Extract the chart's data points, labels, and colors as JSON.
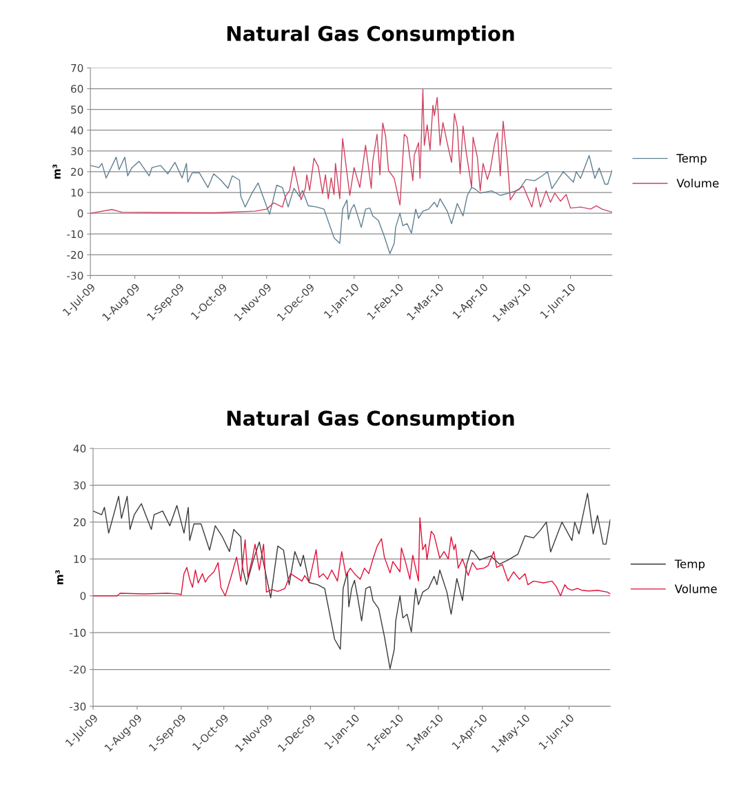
{
  "chart_data": [
    {
      "type": "line",
      "title": "Natural Gas Consumption",
      "ylabel": "m³",
      "ylim": [
        -30,
        70
      ],
      "yticks": [
        -30,
        -20,
        -10,
        0,
        10,
        20,
        30,
        40,
        50,
        60,
        70
      ],
      "xlim": [
        "2009-07-01",
        "2010-06-30"
      ],
      "xticks": [
        {
          "value": "2009-07-01",
          "label": "1-Jul-09"
        },
        {
          "value": "2009-08-01",
          "label": "1-Aug-09"
        },
        {
          "value": "2009-09-01",
          "label": "1-Sep-09"
        },
        {
          "value": "2009-10-01",
          "label": "1-Oct-09"
        },
        {
          "value": "2009-11-01",
          "label": "1-Nov-09"
        },
        {
          "value": "2009-12-01",
          "label": "1-Dec-09"
        },
        {
          "value": "2010-01-01",
          "label": "1-Jan-10"
        },
        {
          "value": "2010-02-01",
          "label": "1-Feb-10"
        },
        {
          "value": "2010-03-01",
          "label": "1-Mar-10"
        },
        {
          "value": "2010-04-01",
          "label": "1-Apr-10"
        },
        {
          "value": "2010-05-01",
          "label": "1-May-10"
        },
        {
          "value": "2010-06-01",
          "label": "1-Jun-10"
        }
      ],
      "grid": "y",
      "legend": "right",
      "marker": "none",
      "line_style": "solid",
      "series": [
        {
          "name": "Temp",
          "color": "#5f7f91",
          "x": [
            "2009-07-01",
            "2009-07-07",
            "2009-07-09",
            "2009-07-12",
            "2009-07-19",
            "2009-07-21",
            "2009-07-25",
            "2009-07-27",
            "2009-07-30",
            "2009-08-04",
            "2009-08-11",
            "2009-08-13",
            "2009-08-19",
            "2009-08-24",
            "2009-08-29",
            "2009-09-03",
            "2009-09-06",
            "2009-09-07",
            "2009-09-10",
            "2009-09-15",
            "2009-09-21",
            "2009-09-25",
            "2009-09-30",
            "2009-10-05",
            "2009-10-08",
            "2009-10-13",
            "2009-10-14",
            "2009-10-17",
            "2009-10-22",
            "2009-10-26",
            "2009-10-30",
            "2009-11-03",
            "2009-11-08",
            "2009-11-12",
            "2009-11-16",
            "2009-11-20",
            "2009-11-24",
            "2009-11-26",
            "2009-11-30",
            "2009-12-06",
            "2009-12-11",
            "2009-12-18",
            "2009-12-22",
            "2009-12-24",
            "2009-12-27",
            "2009-12-28",
            "2009-12-30",
            "2010-01-01",
            "2010-01-03",
            "2010-01-06",
            "2010-01-09",
            "2010-01-12",
            "2010-01-14",
            "2010-01-18",
            "2010-01-22",
            "2010-01-26",
            "2010-01-29",
            "2010-01-30",
            "2010-02-02",
            "2010-02-04",
            "2010-02-07",
            "2010-02-10",
            "2010-02-13",
            "2010-02-15",
            "2010-02-18",
            "2010-02-22",
            "2010-02-26",
            "2010-02-28",
            "2010-03-02",
            "2010-03-07",
            "2010-03-10",
            "2010-03-14",
            "2010-03-18",
            "2010-03-21",
            "2010-03-24",
            "2010-03-26",
            "2010-03-30",
            "2010-04-07",
            "2010-04-13",
            "2010-04-19",
            "2010-04-26",
            "2010-05-01",
            "2010-05-07",
            "2010-05-12",
            "2010-05-16",
            "2010-05-19",
            "2010-05-27",
            "2010-06-03",
            "2010-06-05",
            "2010-06-08",
            "2010-06-14",
            "2010-06-18",
            "2010-06-21",
            "2010-06-25",
            "2010-06-27",
            "2010-06-30"
          ],
          "values": [
            23,
            22,
            24,
            17,
            27,
            21,
            27,
            18,
            22,
            25,
            18,
            22,
            23,
            19,
            24.5,
            17,
            24,
            15,
            19.5,
            19.5,
            12.4,
            19,
            16,
            12,
            18,
            16,
            8,
            3,
            10,
            14.6,
            7,
            -0.5,
            13.5,
            12.4,
            3,
            12,
            8,
            11,
            3.6,
            3,
            2,
            -11.8,
            -14.5,
            2,
            6.4,
            -3,
            2,
            4.2,
            0,
            -6.8,
            2,
            2.5,
            -1.3,
            -3.5,
            -11,
            -19.5,
            -14.5,
            -6.8,
            0,
            -6,
            -5,
            -9.6,
            2,
            -2.4,
            1,
            2,
            5.3,
            3,
            7,
            1,
            -5,
            4.7,
            -1.3,
            8.6,
            12.4,
            11.9,
            9.7,
            10.8,
            8.6,
            9.7,
            11.3,
            16.3,
            15.7,
            17.9,
            20,
            11.9,
            20,
            15,
            20,
            16.8,
            27.8,
            16.8,
            21.8,
            14,
            14,
            20.7
          ]
        },
        {
          "name": "Volume",
          "color": "#d04060",
          "x": [
            "2009-07-01",
            "2009-07-16",
            "2009-07-23",
            "2009-08-24",
            "2009-09-25",
            "2009-10-24",
            "2009-11-01",
            "2009-11-06",
            "2009-11-12",
            "2009-11-14",
            "2009-11-17",
            "2009-11-20",
            "2009-11-22",
            "2009-11-25",
            "2009-11-28",
            "2009-11-29",
            "2009-12-01",
            "2009-12-04",
            "2009-12-07",
            "2009-12-10",
            "2009-12-12",
            "2009-12-14",
            "2009-12-16",
            "2009-12-18",
            "2009-12-19",
            "2009-12-22",
            "2009-12-24",
            "2009-12-27",
            "2009-12-29",
            "2010-01-01",
            "2010-01-05",
            "2010-01-09",
            "2010-01-13",
            "2010-01-14",
            "2010-01-17",
            "2010-01-19",
            "2010-01-21",
            "2010-01-23",
            "2010-01-25",
            "2010-01-29",
            "2010-02-02",
            "2010-02-05",
            "2010-02-07",
            "2010-02-11",
            "2010-02-12",
            "2010-02-15",
            "2010-02-16",
            "2010-02-18",
            "2010-02-19",
            "2010-02-21",
            "2010-02-23",
            "2010-02-25",
            "2010-02-26",
            "2010-02-28",
            "2010-03-02",
            "2010-03-04",
            "2010-03-07",
            "2010-03-10",
            "2010-03-12",
            "2010-03-14",
            "2010-03-16",
            "2010-03-18",
            "2010-03-20",
            "2010-03-24",
            "2010-03-25",
            "2010-03-28",
            "2010-03-30",
            "2010-04-01",
            "2010-04-04",
            "2010-04-06",
            "2010-04-09",
            "2010-04-11",
            "2010-04-13",
            "2010-04-15",
            "2010-04-18",
            "2010-04-20",
            "2010-04-24",
            "2010-04-29",
            "2010-05-05",
            "2010-05-08",
            "2010-05-11",
            "2010-05-15",
            "2010-05-18",
            "2010-05-21",
            "2010-05-25",
            "2010-05-29",
            "2010-06-01",
            "2010-06-08",
            "2010-06-15",
            "2010-06-19",
            "2010-06-23",
            "2010-06-30"
          ],
          "values": [
            0,
            1.8,
            0.5,
            0.3,
            0.2,
            1,
            2,
            5,
            3,
            8,
            11,
            22.5,
            16,
            6.5,
            12,
            18.5,
            11,
            26.5,
            22.5,
            9.5,
            18.5,
            7,
            17,
            9,
            24,
            7,
            36,
            19.5,
            8.6,
            22,
            12.4,
            32.7,
            12,
            25,
            38,
            18.5,
            43.5,
            37,
            20.7,
            16.8,
            4,
            38,
            36.6,
            15.7,
            28,
            34,
            16.8,
            59.7,
            32.7,
            42.6,
            30.5,
            52,
            47,
            55.8,
            32.7,
            43.7,
            33.8,
            24.5,
            48,
            41.5,
            19,
            42,
            30.5,
            12.4,
            36.6,
            27,
            10.8,
            24,
            16.3,
            20.7,
            33.3,
            38.8,
            18,
            44.3,
            25,
            6.4,
            10.8,
            13,
            3,
            12.4,
            3,
            10.8,
            5.3,
            9.7,
            5.8,
            9,
            2.5,
            3,
            2,
            3.6,
            2,
            0.5
          ]
        }
      ]
    },
    {
      "type": "line",
      "title": "Natural Gas Consumption",
      "ylabel": "m³",
      "ylim": [
        -30,
        40
      ],
      "yticks": [
        -30,
        -20,
        -10,
        0,
        10,
        20,
        30,
        40
      ],
      "xlim": [
        "2009-07-01",
        "2010-06-30"
      ],
      "xticks": [
        {
          "value": "2009-07-01",
          "label": "1-Jul-09"
        },
        {
          "value": "2009-08-01",
          "label": "1-Aug-09"
        },
        {
          "value": "2009-09-01",
          "label": "1-Sep-09"
        },
        {
          "value": "2009-10-01",
          "label": "1-Oct-09"
        },
        {
          "value": "2009-11-01",
          "label": "1-Nov-09"
        },
        {
          "value": "2009-12-01",
          "label": "1-Dec-09"
        },
        {
          "value": "2010-01-01",
          "label": "1-Jan-10"
        },
        {
          "value": "2010-02-01",
          "label": "1-Feb-10"
        },
        {
          "value": "2010-03-01",
          "label": "1-Mar-10"
        },
        {
          "value": "2010-04-01",
          "label": "1-Apr-10"
        },
        {
          "value": "2010-05-01",
          "label": "1-May-10"
        },
        {
          "value": "2010-06-01",
          "label": "1-Jun-10"
        }
      ],
      "grid": "y",
      "legend": "right",
      "marker": "none",
      "line_style": "solid",
      "series": [
        {
          "name": "Temp",
          "color": "#3a3a3a",
          "x": [
            "2009-07-01",
            "2009-07-07",
            "2009-07-09",
            "2009-07-12",
            "2009-07-19",
            "2009-07-21",
            "2009-07-25",
            "2009-07-27",
            "2009-07-30",
            "2009-08-04",
            "2009-08-11",
            "2009-08-13",
            "2009-08-19",
            "2009-08-24",
            "2009-08-29",
            "2009-09-03",
            "2009-09-06",
            "2009-09-07",
            "2009-09-10",
            "2009-09-15",
            "2009-09-21",
            "2009-09-25",
            "2009-09-30",
            "2009-10-05",
            "2009-10-08",
            "2009-10-13",
            "2009-10-14",
            "2009-10-17",
            "2009-10-22",
            "2009-10-26",
            "2009-10-30",
            "2009-11-03",
            "2009-11-08",
            "2009-11-12",
            "2009-11-16",
            "2009-11-20",
            "2009-11-24",
            "2009-11-26",
            "2009-11-30",
            "2009-12-06",
            "2009-12-11",
            "2009-12-18",
            "2009-12-22",
            "2009-12-24",
            "2009-12-27",
            "2009-12-28",
            "2009-12-30",
            "2010-01-01",
            "2010-01-03",
            "2010-01-06",
            "2010-01-09",
            "2010-01-12",
            "2010-01-14",
            "2010-01-18",
            "2010-01-22",
            "2010-01-26",
            "2010-01-29",
            "2010-01-30",
            "2010-02-02",
            "2010-02-04",
            "2010-02-07",
            "2010-02-10",
            "2010-02-13",
            "2010-02-15",
            "2010-02-18",
            "2010-02-22",
            "2010-02-26",
            "2010-02-28",
            "2010-03-02",
            "2010-03-07",
            "2010-03-10",
            "2010-03-14",
            "2010-03-18",
            "2010-03-21",
            "2010-03-24",
            "2010-03-26",
            "2010-03-30",
            "2010-04-07",
            "2010-04-13",
            "2010-04-19",
            "2010-04-26",
            "2010-05-01",
            "2010-05-07",
            "2010-05-12",
            "2010-05-16",
            "2010-05-19",
            "2010-05-27",
            "2010-06-03",
            "2010-06-05",
            "2010-06-08",
            "2010-06-14",
            "2010-06-18",
            "2010-06-21",
            "2010-06-25",
            "2010-06-27",
            "2010-06-30"
          ],
          "values": [
            23,
            22,
            24,
            17,
            27,
            21,
            27,
            18,
            22,
            25,
            18,
            22,
            23,
            19,
            24.5,
            17,
            24,
            15,
            19.5,
            19.5,
            12.4,
            19,
            16,
            12,
            18,
            16,
            8,
            3,
            10,
            14.6,
            7,
            -0.5,
            13.5,
            12.4,
            3,
            12,
            8,
            11,
            3.6,
            3,
            2,
            -11.8,
            -14.5,
            2,
            6.4,
            -3,
            2,
            4.2,
            0,
            -6.8,
            2,
            2.5,
            -1.3,
            -3.5,
            -11,
            -19.8,
            -14.5,
            -6.8,
            0,
            -6,
            -5,
            -9.8,
            2,
            -2.4,
            1,
            2,
            5.3,
            3,
            7,
            1,
            -5,
            4.7,
            -1.3,
            8.6,
            12.4,
            11.9,
            9.7,
            10.8,
            8.6,
            9.7,
            11.3,
            16.3,
            15.7,
            17.9,
            20,
            11.9,
            20,
            15,
            20,
            16.8,
            27.8,
            16.8,
            21.8,
            14,
            14,
            20.7
          ]
        },
        {
          "name": "Volume",
          "color": "#e0103a",
          "x": [
            "2009-07-01",
            "2009-07-18",
            "2009-07-20",
            "2009-08-06",
            "2009-08-22",
            "2009-08-30",
            "2009-09-01",
            "2009-09-03",
            "2009-09-05",
            "2009-09-07",
            "2009-09-09",
            "2009-09-11",
            "2009-09-13",
            "2009-09-16",
            "2009-09-18",
            "2009-09-20",
            "2009-09-24",
            "2009-09-27",
            "2009-09-29",
            "2009-10-02",
            "2009-10-06",
            "2009-10-10",
            "2009-10-13",
            "2009-10-16",
            "2009-10-18",
            "2009-10-21",
            "2009-10-23",
            "2009-10-26",
            "2009-10-29",
            "2009-10-31",
            "2009-11-04",
            "2009-11-08",
            "2009-11-13",
            "2009-11-17",
            "2009-11-25",
            "2009-11-27",
            "2009-11-30",
            "2009-12-05",
            "2009-12-07",
            "2009-12-10",
            "2009-12-13",
            "2009-12-16",
            "2009-12-20",
            "2009-12-23",
            "2009-12-26",
            "2009-12-29",
            "2010-01-01",
            "2010-01-05",
            "2010-01-08",
            "2010-01-11",
            "2010-01-14",
            "2010-01-17",
            "2010-01-20",
            "2010-01-22",
            "2010-01-26",
            "2010-01-28",
            "2010-02-02",
            "2010-02-03",
            "2010-02-06",
            "2010-02-09",
            "2010-02-11",
            "2010-02-13",
            "2010-02-15",
            "2010-02-16",
            "2010-02-18",
            "2010-02-20",
            "2010-02-21",
            "2010-02-24",
            "2010-02-26",
            "2010-03-02",
            "2010-03-05",
            "2010-03-08",
            "2010-03-10",
            "2010-03-12",
            "2010-03-13",
            "2010-03-15",
            "2010-03-18",
            "2010-03-22",
            "2010-03-25",
            "2010-03-28",
            "2010-04-02",
            "2010-04-05",
            "2010-04-09",
            "2010-04-11",
            "2010-04-15",
            "2010-04-19",
            "2010-04-23",
            "2010-04-27",
            "2010-05-01",
            "2010-05-03",
            "2010-05-07",
            "2010-05-14",
            "2010-05-20",
            "2010-05-23",
            "2010-05-26",
            "2010-05-29",
            "2010-05-31",
            "2010-06-03",
            "2010-06-07",
            "2010-06-10",
            "2010-06-15",
            "2010-06-21",
            "2010-06-28",
            "2010-06-30"
          ],
          "values": [
            0,
            0,
            0.7,
            0.5,
            0.7,
            0.5,
            0.3,
            6,
            7.7,
            4.5,
            2.3,
            7,
            3.5,
            6,
            3.7,
            5,
            6.5,
            9,
            2.2,
            0,
            5,
            10.5,
            4,
            15.2,
            5,
            10,
            14,
            7,
            14,
            1,
            1.7,
            1.2,
            2,
            6,
            4,
            5.5,
            3.7,
            12.5,
            5,
            6,
            4.5,
            7,
            4,
            12,
            5.5,
            7.5,
            6,
            4.5,
            7.5,
            6,
            10,
            13.5,
            15.5,
            10.5,
            6.2,
            9.3,
            6.5,
            13,
            9,
            4.5,
            11,
            7.5,
            4,
            21.2,
            12.5,
            14,
            9.8,
            17.5,
            16.5,
            10.2,
            12,
            10,
            16,
            12.5,
            14,
            7.5,
            10,
            5.5,
            9,
            7.2,
            7.5,
            8.2,
            12,
            7.7,
            8.5,
            4,
            6.5,
            4.5,
            6,
            3,
            4,
            3.5,
            4,
            2.5,
            0,
            3,
            2,
            1.5,
            2,
            1.5,
            1.3,
            1.5,
            1,
            0.5
          ]
        }
      ]
    }
  ]
}
